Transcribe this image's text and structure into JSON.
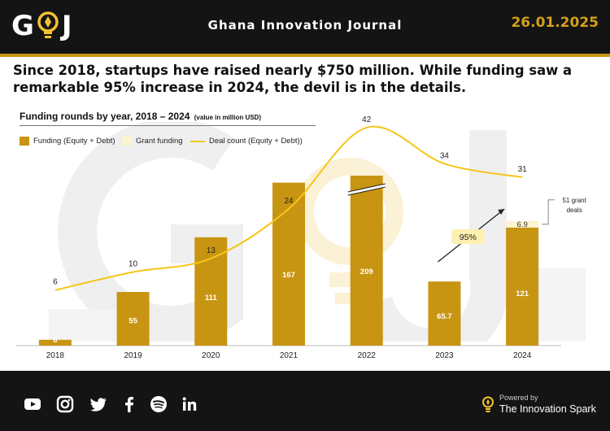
{
  "header": {
    "logo_left": "G",
    "logo_right": "J",
    "title": "Ghana Innovation Journal",
    "date": "26.01.2025"
  },
  "headline": "Since 2018, startups have raised nearly $750 million. While funding saw a remarkable 95% increase in 2024, the devil is in the details.",
  "colors": {
    "gold": "#c89512",
    "grant": "#fdf3cf",
    "line": "#f5c518",
    "header_bg": "#141414",
    "date": "#d4a017"
  },
  "chart_title": {
    "main": "Funding rounds by year, 2018 – 2024",
    "unit": "(value in million USD)"
  },
  "legend": {
    "funding": "Funding (Equity + Debt)",
    "grant": "Grant funding",
    "deals": "Deal count (Equity + Debt))"
  },
  "chart_data": {
    "type": "bar",
    "categories": [
      "2018",
      "2019",
      "2020",
      "2021",
      "2022",
      "2023",
      "2024"
    ],
    "series": [
      {
        "name": "Funding (Equity + Debt)",
        "type": "bar",
        "values": [
          6,
          55,
          111,
          167,
          209,
          65.7,
          121
        ],
        "labels": [
          "6",
          "55",
          "111",
          "167",
          "209",
          "65.7",
          "121"
        ]
      },
      {
        "name": "Grant funding",
        "type": "bar-stacked",
        "values": [
          0,
          0,
          0,
          0,
          0,
          0,
          6.9
        ],
        "labels": [
          "",
          "",
          "",
          "",
          "",
          "",
          "6.9"
        ]
      },
      {
        "name": "Deal count (Equity + Debt))",
        "type": "line",
        "values": [
          6,
          10,
          13,
          24,
          42,
          34,
          31
        ],
        "labels": [
          "6",
          "10",
          "13",
          "24",
          "42",
          "34",
          "31"
        ]
      }
    ],
    "axis_break_on": "2022",
    "annotations": [
      {
        "text": "95%",
        "kind": "growth-arrow",
        "from": "2023",
        "to": "2024"
      },
      {
        "text": "51 grant deals",
        "kind": "callout",
        "target": "2024"
      }
    ],
    "grid": false,
    "legend_position": "top-left"
  },
  "footer": {
    "icons": [
      "youtube-icon",
      "instagram-icon",
      "twitter-icon",
      "facebook-icon",
      "spotify-icon",
      "linkedin-icon"
    ],
    "powered_by": "Powered by",
    "brand": "The Innovation Spark"
  }
}
